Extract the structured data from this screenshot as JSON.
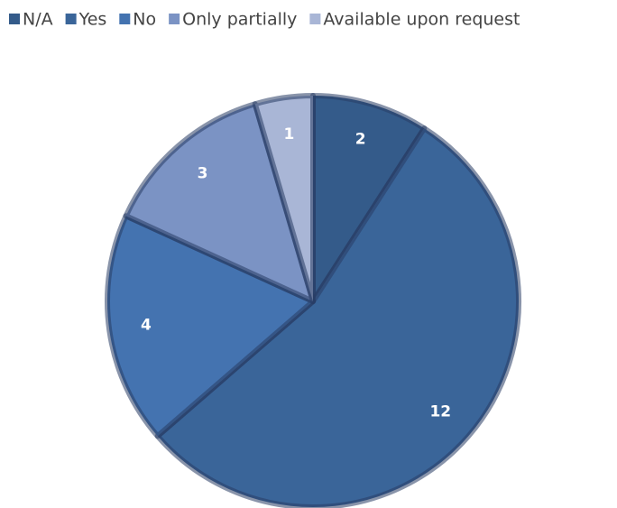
{
  "chart_data": {
    "type": "pie",
    "categories": [
      "N/A",
      "Yes",
      "No",
      "Only partially",
      "Available upon request"
    ],
    "values": [
      2,
      12,
      4,
      3,
      1
    ],
    "colors": [
      "#345b8a",
      "#3a6599",
      "#4473b0",
      "#7b93c4",
      "#a9b6d6"
    ],
    "legend": "top"
  }
}
